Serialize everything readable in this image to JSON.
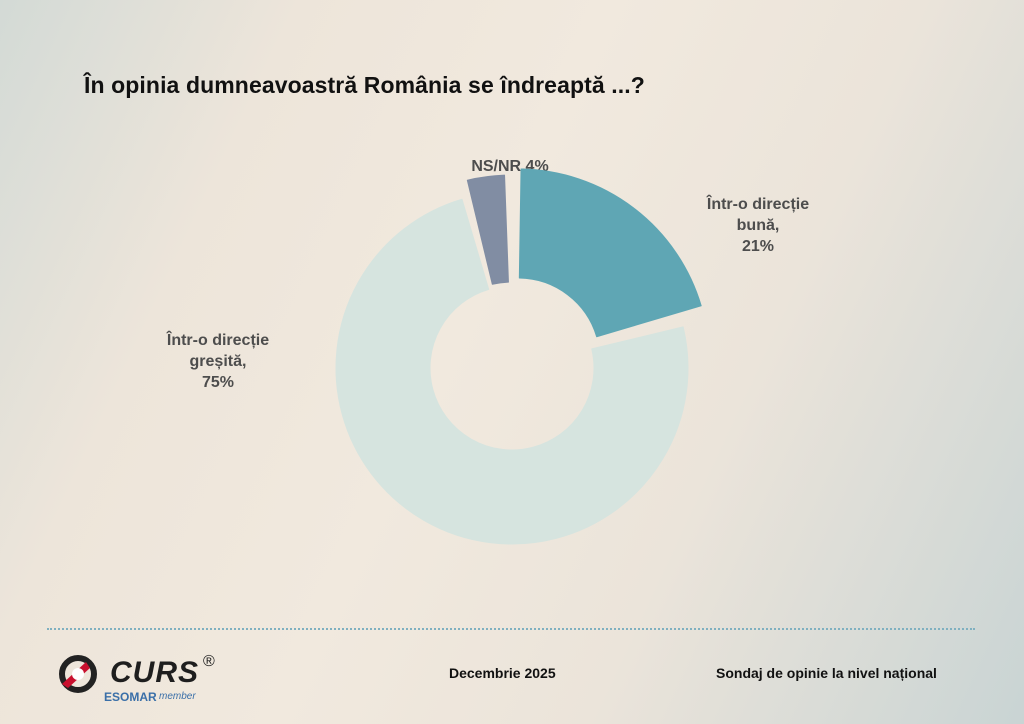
{
  "title": "În opinia dumneavoastră România se îndreaptă ...?",
  "chart_data": {
    "type": "pie",
    "title": "În opinia dumneavoastră România se îndreaptă ...?",
    "slices": [
      {
        "label_lines": [
          "NS/NR,4%"
        ],
        "label": "NS/NR",
        "value": 4,
        "color": "#818da3"
      },
      {
        "label_lines": [
          "Într-o direcție",
          "bună,",
          "21%"
        ],
        "label": "Într-o direcție bună",
        "value": 21,
        "color": "#5fa6b4"
      },
      {
        "label_lines": [
          "Într-o direcție",
          "greșită,",
          "75%"
        ],
        "label": "Într-o direcție greșită",
        "value": 75,
        "color": "#d6e4df"
      }
    ]
  },
  "footer": {
    "date": "Decembrie 2025",
    "survey": "Sondaj de opinie la nivel național"
  },
  "logo": {
    "name": "CURS",
    "registered": "®",
    "esomar": "ESOMAR",
    "member": "member"
  },
  "colors": {
    "title": "#111111",
    "label": "#4d4d4d",
    "divider": "#7fb0c0"
  }
}
